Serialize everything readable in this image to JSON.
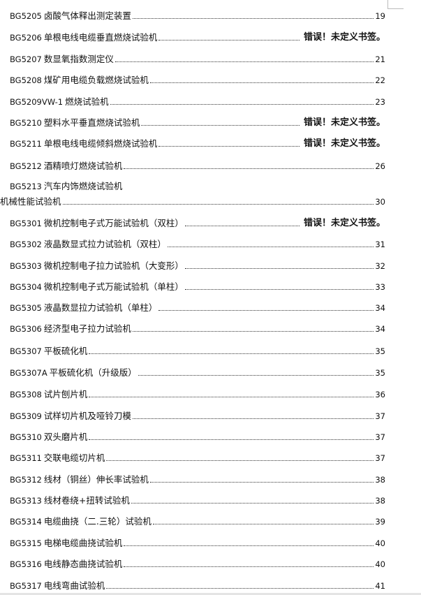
{
  "toc": [
    {
      "code": "BG5205",
      "title": "卤酸气体释出测定装置",
      "page": "19"
    },
    {
      "code": "BG5206",
      "title": "单根电线电缆垂直燃烧试验机",
      "error": "错误！未定义书签。"
    },
    {
      "code": "BG5207",
      "title": "数显氧指数测定仪",
      "page": "21"
    },
    {
      "code": "BG5208",
      "title": "煤矿用电缆负载燃烧试验机",
      "page": "22"
    },
    {
      "code": "BG5209VW-1",
      "title": "燃烧试验机",
      "page": "23"
    },
    {
      "code": "BG5210",
      "title": "塑料水平垂直燃烧试验机",
      "error": "错误！未定义书签。"
    },
    {
      "code": "BG5211",
      "title": "单根电线电缆倾斜燃烧试验机",
      "error": "错误！未定义书签。"
    },
    {
      "code": "BG5212",
      "title": "酒精喷灯燃烧试验机",
      "page": "26"
    },
    {
      "code": "BG5213",
      "title": "汽车内饰燃烧试验机"
    },
    {
      "code": "",
      "title": "机械性能试验机",
      "page": "30"
    },
    {
      "code": "BG5301",
      "title": "微机控制电子式万能试验机（双柱）",
      "error": "错误！未定义书签。"
    },
    {
      "code": "BG5302",
      "title": "液晶数显式拉力试验机（双柱）",
      "page": "31"
    },
    {
      "code": "BG5303",
      "title": "微机控制电子拉力试验机（大变形）",
      "page": "32"
    },
    {
      "code": "BG5304",
      "title": "微机控制电子式万能试验机（单柱）",
      "page": "33"
    },
    {
      "code": "BG5305",
      "title": "液晶数显拉力试验机（单柱）",
      "page": "34"
    },
    {
      "code": "BG5306",
      "title": "经济型电子拉力试验机",
      "page": "34"
    },
    {
      "code": "BG5307",
      "title": "平板硫化机",
      "page": "35"
    },
    {
      "code": "BG5307A",
      "title": "平板硫化机（升级版）",
      "page": "35"
    },
    {
      "code": "BG5308",
      "title": "试片刨片机",
      "page": "36"
    },
    {
      "code": "BG5309",
      "title": "试样切片机及哑铃刀模",
      "page": "37"
    },
    {
      "code": "BG5310",
      "title": "双头磨片机",
      "page": "37"
    },
    {
      "code": "BG5311",
      "title": "交联电缆切片机",
      "page": "37"
    },
    {
      "code": "BG5312",
      "title": "线材（铜丝）伸长率试验机",
      "page": "38"
    },
    {
      "code": "BG5313",
      "title": "线材卷绕+扭转试验机",
      "page": "38"
    },
    {
      "code": "BG5314",
      "title": "电缆曲挠（二.三轮）试验机",
      "page": "39"
    },
    {
      "code": "BG5315",
      "title": "电梯电缆曲挠试验机",
      "page": "40"
    },
    {
      "code": "BG5316",
      "title": "电线静态曲挠试验机",
      "page": "40"
    },
    {
      "code": "BG5317",
      "title": "电线弯曲试验机",
      "page": "41"
    }
  ]
}
